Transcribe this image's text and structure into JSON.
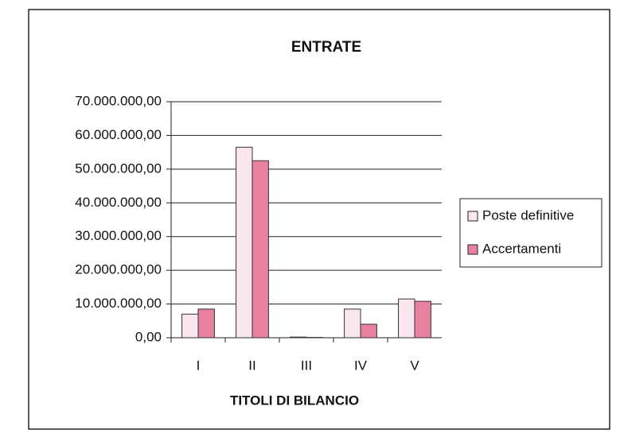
{
  "chart_data": {
    "type": "bar",
    "title": "ENTRATE",
    "x_label": "TITOLI DI BILANCIO",
    "categories": [
      "I",
      "II",
      "III",
      "IV",
      "V"
    ],
    "series": [
      {
        "name": "Poste definitive",
        "color": "#f9e6ee",
        "values": [
          7000000,
          56500000,
          200000,
          8500000,
          11500000
        ]
      },
      {
        "name": "Accertamenti",
        "color": "#e8819f",
        "values": [
          8500000,
          52500000,
          100000,
          4000000,
          10800000
        ]
      }
    ],
    "ylim": [
      0,
      70000000
    ],
    "yticks": [
      {
        "value": 0,
        "label": "0,00"
      },
      {
        "value": 10000000,
        "label": "10.000.000,00"
      },
      {
        "value": 20000000,
        "label": "20.000.000,00"
      },
      {
        "value": 30000000,
        "label": "30.000.000,00"
      },
      {
        "value": 40000000,
        "label": "40.000.000,00"
      },
      {
        "value": 50000000,
        "label": "50.000.000,00"
      },
      {
        "value": 60000000,
        "label": "60.000.000,00"
      },
      {
        "value": 70000000,
        "label": "70.000.000,00"
      }
    ],
    "grid": true,
    "legend": "right"
  }
}
